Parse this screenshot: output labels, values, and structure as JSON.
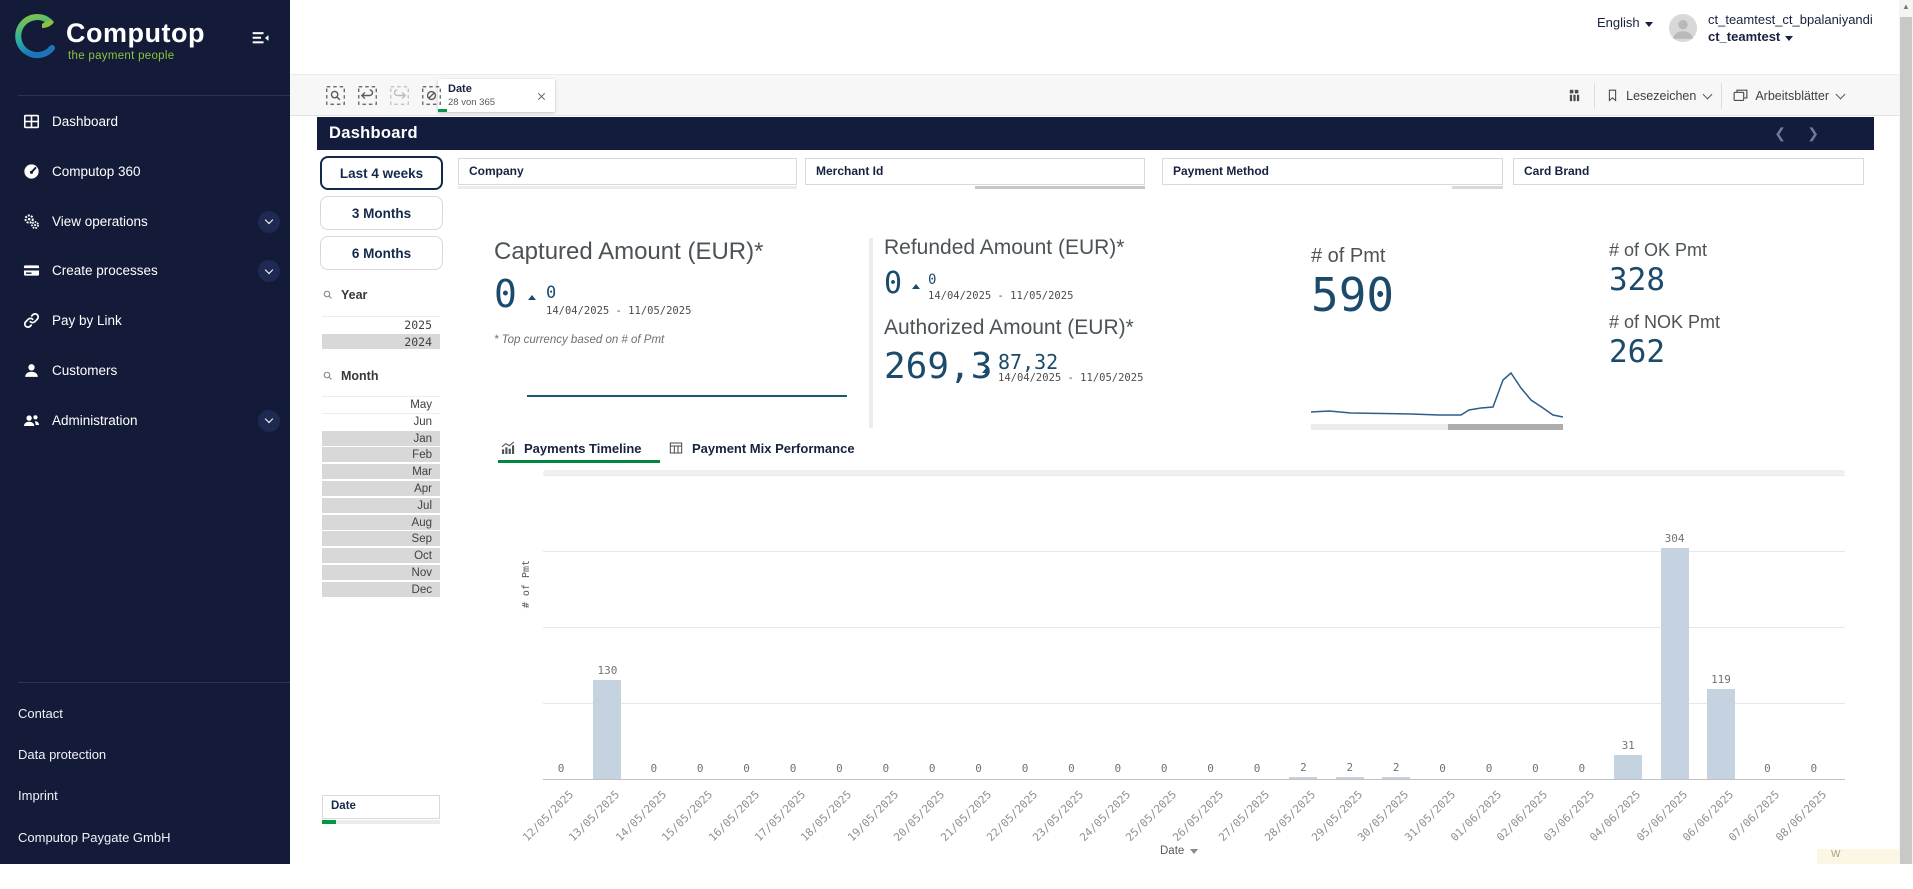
{
  "sidebar": {
    "logo_title": "Computop",
    "logo_tagline": "the payment people",
    "items": [
      {
        "id": "dashboard",
        "label": "Dashboard",
        "icon": "dashboard-icon",
        "expandable": false
      },
      {
        "id": "computop-360",
        "label": "Computop 360",
        "icon": "gauge-icon",
        "expandable": false
      },
      {
        "id": "view-operations",
        "label": "View operations",
        "icon": "gears-icon",
        "expandable": true
      },
      {
        "id": "create-processes",
        "label": "Create processes",
        "icon": "card-icon",
        "expandable": true
      },
      {
        "id": "pay-by-link",
        "label": "Pay by Link",
        "icon": "link-icon",
        "expandable": false
      },
      {
        "id": "customers",
        "label": "Customers",
        "icon": "person-icon",
        "expandable": false
      },
      {
        "id": "administration",
        "label": "Administration",
        "icon": "people-icon",
        "expandable": true
      }
    ],
    "footer_links": [
      "Contact",
      "Data protection",
      "Imprint"
    ],
    "company": "Computop Paygate GmbH"
  },
  "header": {
    "language": "English",
    "user_line1": "ct_teamtest_ct_bpalaniyandi",
    "user_line2": "ct_teamtest"
  },
  "toolbar": {
    "selection_tools": [
      {
        "id": "selections-search",
        "icon": "selection-search-icon",
        "disabled": false
      },
      {
        "id": "step-back",
        "icon": "undo-icon",
        "disabled": false
      },
      {
        "id": "step-forward",
        "icon": "redo-icon",
        "disabled": true
      },
      {
        "id": "clear-selections",
        "icon": "clear-selections-icon",
        "disabled": false
      }
    ],
    "filter_chip": {
      "title": "Date",
      "subtitle": "28 von 365"
    },
    "bookmarks_label": "Lesezeichen",
    "sheets_label": "Arbeitsblätter"
  },
  "page": {
    "title": "Dashboard"
  },
  "filters": {
    "time_buttons": [
      "Last 4 weeks",
      "3 Months",
      "6 Months"
    ],
    "active_time_button": "Last 4 weeks",
    "year": {
      "label": "Year",
      "options": [
        {
          "value": "2025",
          "state": "possible"
        },
        {
          "value": "2024",
          "state": "excluded"
        }
      ]
    },
    "month": {
      "label": "Month",
      "options": [
        {
          "value": "May",
          "state": "possible"
        },
        {
          "value": "Jun",
          "state": "possible"
        },
        {
          "value": "Jan",
          "state": "excluded"
        },
        {
          "value": "Feb",
          "state": "excluded"
        },
        {
          "value": "Mar",
          "state": "excluded"
        },
        {
          "value": "Apr",
          "state": "excluded"
        },
        {
          "value": "Jul",
          "state": "excluded"
        },
        {
          "value": "Aug",
          "state": "excluded"
        },
        {
          "value": "Sep",
          "state": "excluded"
        },
        {
          "value": "Oct",
          "state": "excluded"
        },
        {
          "value": "Nov",
          "state": "excluded"
        },
        {
          "value": "Dec",
          "state": "excluded"
        }
      ]
    },
    "date_box_label": "Date",
    "search_fields": [
      "Company",
      "Merchant Id",
      "Payment Method",
      "Card Brand"
    ]
  },
  "kpis": {
    "captured": {
      "title": "Captured Amount (EUR)*",
      "value": "0",
      "delta": "0",
      "period": "14/04/2025 - 11/05/2025"
    },
    "refunded": {
      "title": "Refunded Amount (EUR)*",
      "value": "0",
      "delta": "0",
      "period": "14/04/2025 - 11/05/2025"
    },
    "authorized": {
      "title": "Authorized Amount (EUR)*",
      "value": "269,3",
      "delta": "87,32",
      "period": "14/04/2025 - 11/05/2025"
    },
    "pmt": {
      "title": "# of Pmt",
      "value": "590"
    },
    "ok_pmt": {
      "title": "# of OK Pmt",
      "value": "328"
    },
    "nok_pmt": {
      "title": "# of NOK Pmt",
      "value": "262"
    }
  },
  "footnote": "* Top currency based on # of Pmt",
  "tabs": [
    {
      "label": "Payments Timeline",
      "icon": "chart-icon",
      "active": true
    },
    {
      "label": "Payment Mix Performance",
      "icon": "table-icon",
      "active": false
    }
  ],
  "chart_data": {
    "type": "bar",
    "title": "Payments Timeline",
    "xlabel": "Date",
    "ylabel": "# of Pmt",
    "ylim": [
      0,
      400
    ],
    "gridlines": [
      100,
      200,
      300,
      400
    ],
    "grid": true,
    "legend": false,
    "bar_color": "#c5d3e0",
    "categories": [
      "12/05/2025",
      "13/05/2025",
      "14/05/2025",
      "15/05/2025",
      "16/05/2025",
      "17/05/2025",
      "18/05/2025",
      "19/05/2025",
      "20/05/2025",
      "21/05/2025",
      "22/05/2025",
      "23/05/2025",
      "24/05/2025",
      "25/05/2025",
      "26/05/2025",
      "27/05/2025",
      "28/05/2025",
      "29/05/2025",
      "30/05/2025",
      "31/05/2025",
      "01/06/2025",
      "02/06/2025",
      "03/06/2025",
      "04/06/2025",
      "05/06/2025",
      "06/06/2025",
      "07/06/2025",
      "08/06/2025"
    ],
    "values": [
      0,
      130,
      0,
      0,
      0,
      0,
      0,
      0,
      0,
      0,
      0,
      0,
      0,
      0,
      0,
      0,
      2,
      2,
      2,
      0,
      0,
      0,
      0,
      31,
      304,
      119,
      0,
      0
    ],
    "x_axis_selector": "Date"
  },
  "toast": {
    "text": "W"
  },
  "colors": {
    "sidebar_navy": "#141b38",
    "title_navy": "#131c3d",
    "kpi_blue": "#1b4a6b",
    "accent_green": "#009845",
    "tagline_green": "#8bc53f",
    "bar_fill": "#c5d3e0"
  }
}
